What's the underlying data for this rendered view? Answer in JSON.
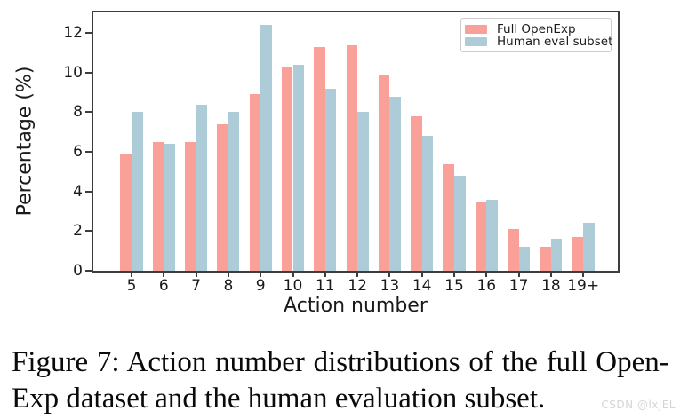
{
  "figure": {
    "caption_line1": "Figure 7: Action number distributions of the full Open-",
    "caption_line2": "Exp dataset and the human evaluation subset.",
    "watermark": "CSDN @lxjEL"
  },
  "chart_data": {
    "type": "bar",
    "title": "",
    "xlabel": "Action number",
    "ylabel": "Percentage (%)",
    "categories": [
      "5",
      "6",
      "7",
      "8",
      "9",
      "10",
      "11",
      "12",
      "13",
      "14",
      "15",
      "16",
      "17",
      "18",
      "19+"
    ],
    "series": [
      {
        "name": "Full OpenExp",
        "color": "#F9A098",
        "values": [
          5.9,
          6.5,
          6.5,
          7.4,
          8.9,
          10.3,
          11.3,
          11.4,
          9.9,
          7.8,
          5.4,
          3.5,
          2.1,
          1.2,
          1.7
        ]
      },
      {
        "name": "Human eval subset",
        "color": "#AECBD8",
        "values": [
          8.0,
          6.4,
          8.4,
          8.0,
          12.4,
          10.4,
          9.2,
          8.0,
          8.8,
          6.8,
          4.8,
          3.6,
          1.2,
          1.6,
          2.4
        ]
      }
    ],
    "ylim": [
      0,
      13
    ],
    "yticks": [
      0,
      2,
      4,
      6,
      8,
      10,
      12
    ],
    "legend_position": "upper right",
    "grid": false
  },
  "colors": {
    "spine": "#3D3D3D",
    "legend_border": "#CCCCCC",
    "tick_text": "#1A1A1A",
    "watermark_text": "#D5D5D5"
  }
}
